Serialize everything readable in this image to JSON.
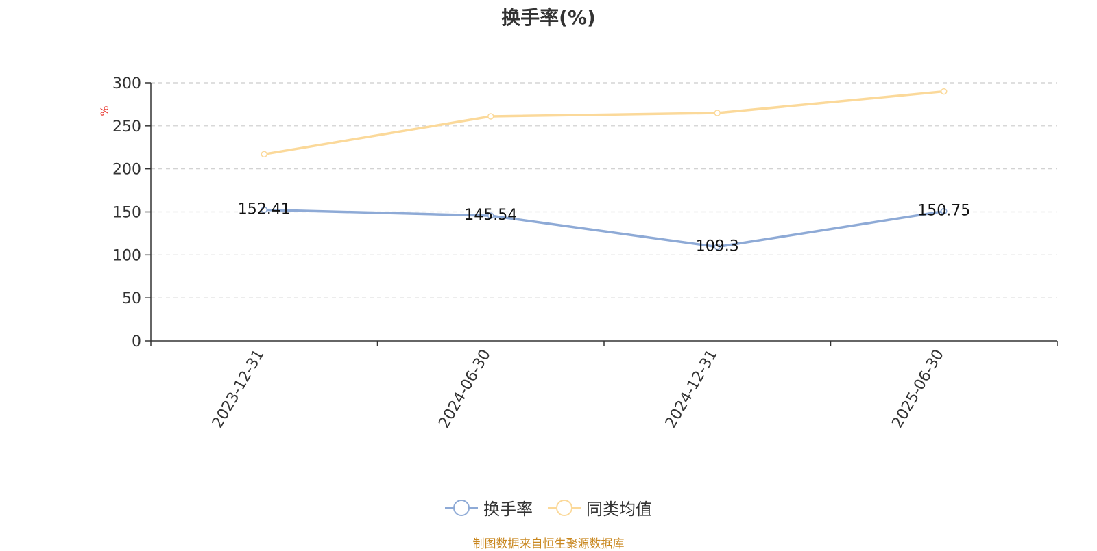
{
  "chart_data": {
    "type": "line",
    "title": "换手率(%)",
    "ylabel": "%",
    "categories": [
      "2023-12-31",
      "2024-06-30",
      "2024-12-31",
      "2025-06-30"
    ],
    "ylim": [
      0,
      300
    ],
    "yticks": [
      0,
      50,
      100,
      150,
      200,
      250,
      300
    ],
    "grid": true,
    "legend_position": "bottom",
    "series": [
      {
        "name": "换手率",
        "color": "#8eaad6",
        "values": [
          152.41,
          145.54,
          109.3,
          150.75
        ],
        "labels": [
          "152.41",
          "145.54",
          "109.3",
          "150.75"
        ]
      },
      {
        "name": "同类均值",
        "color": "#fbd99a",
        "values": [
          217,
          261,
          265,
          290
        ]
      }
    ]
  },
  "footer": {
    "source": "制图数据来自恒生聚源数据库"
  },
  "colors": {
    "ylabel": "#e8372f",
    "axis": "#333333",
    "grid": "#cccccc",
    "source": "#c9871f"
  }
}
